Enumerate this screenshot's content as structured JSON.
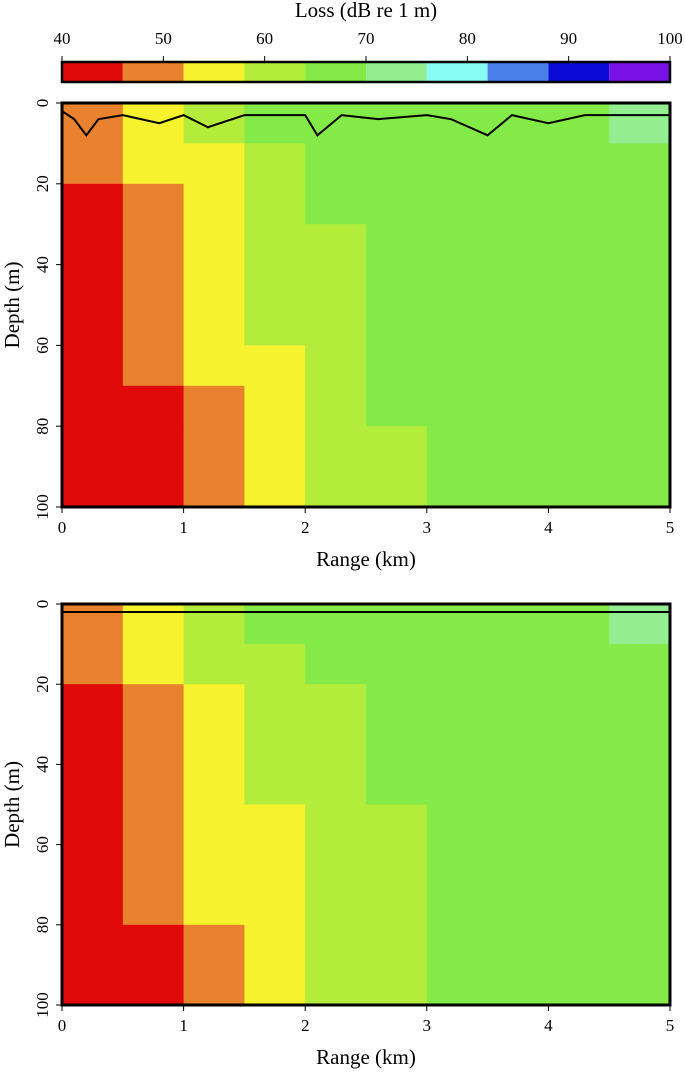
{
  "chart_data": [
    {
      "type": "colorbar",
      "title": "Loss (dB re 1 m)",
      "bins": [
        40,
        46,
        52,
        58,
        64,
        70,
        76,
        82,
        88,
        94,
        100
      ],
      "colors": [
        "#e00a0a",
        "#e8822e",
        "#f6f22e",
        "#b4ec3c",
        "#84ea48",
        "#92ee8e",
        "#86fcf4",
        "#4a80ea",
        "#0a0ad8",
        "#7a10e8"
      ],
      "xlim": [
        40,
        100
      ],
      "xticks": [
        40,
        50,
        60,
        70,
        80,
        90,
        100
      ]
    },
    {
      "type": "heatmap",
      "xlabel": "Range (km)",
      "ylabel": "Depth (m)",
      "xlim": [
        0,
        5
      ],
      "ylim": [
        100,
        0
      ],
      "xticks": [
        0,
        1,
        2,
        3,
        4,
        5
      ],
      "yticks": [
        0,
        20,
        40,
        60,
        80,
        100
      ],
      "x": [
        0.25,
        0.75,
        1.25,
        1.75,
        2.25,
        2.75,
        3.25,
        3.75,
        4.25,
        4.75
      ],
      "y": [
        5,
        15,
        25,
        35,
        45,
        55,
        65,
        75,
        85,
        95
      ],
      "z": [
        [
          50,
          55,
          60,
          64,
          66,
          67,
          68,
          68,
          69,
          70
        ],
        [
          47,
          52,
          57,
          62,
          65,
          66,
          67,
          68,
          68,
          69
        ],
        [
          45,
          50,
          56,
          60,
          64,
          66,
          67,
          67,
          68,
          68
        ],
        [
          44,
          49,
          55,
          59,
          63,
          65,
          66,
          67,
          67,
          68
        ],
        [
          43,
          48,
          54,
          58,
          62,
          65,
          66,
          66,
          67,
          67
        ],
        [
          43,
          47,
          53,
          58,
          62,
          64,
          66,
          66,
          67,
          67
        ],
        [
          42,
          46,
          52,
          57,
          61,
          64,
          65,
          66,
          66,
          67
        ],
        [
          42,
          45,
          51,
          57,
          61,
          64,
          65,
          66,
          66,
          67
        ],
        [
          42,
          45,
          50,
          56,
          60,
          63,
          65,
          65,
          66,
          66
        ],
        [
          42,
          44,
          50,
          56,
          60,
          63,
          65,
          65,
          66,
          66
        ]
      ],
      "line": {
        "color": "#000000",
        "x": [
          0,
          0.1,
          0.2,
          0.3,
          0.5,
          0.8,
          1,
          1.2,
          1.5,
          1.8,
          2,
          2.1,
          2.3,
          2.6,
          3,
          3.2,
          3.5,
          3.7,
          4,
          4.3,
          4.6,
          5
        ],
        "y": [
          2,
          4,
          8,
          4,
          3,
          5,
          3,
          6,
          3,
          3,
          3,
          8,
          3,
          4,
          3,
          4,
          8,
          3,
          5,
          3,
          3,
          3
        ]
      }
    },
    {
      "type": "heatmap",
      "xlabel": "Range (km)",
      "ylabel": "Depth (m)",
      "xlim": [
        0,
        5
      ],
      "ylim": [
        100,
        0
      ],
      "xticks": [
        0,
        1,
        2,
        3,
        4,
        5
      ],
      "yticks": [
        0,
        20,
        40,
        60,
        80,
        100
      ],
      "x": [
        0.25,
        0.75,
        1.25,
        1.75,
        2.25,
        2.75,
        3.25,
        3.75,
        4.25,
        4.75
      ],
      "y": [
        5,
        15,
        25,
        35,
        45,
        55,
        65,
        75,
        85,
        95
      ],
      "z": [
        [
          50,
          57,
          62,
          65,
          67,
          68,
          68,
          69,
          69,
          70
        ],
        [
          47,
          53,
          58,
          62,
          65,
          66,
          67,
          68,
          68,
          69
        ],
        [
          45,
          51,
          56,
          60,
          63,
          65,
          66,
          67,
          68,
          68
        ],
        [
          44,
          49,
          55,
          59,
          62,
          64,
          66,
          67,
          67,
          68
        ],
        [
          43,
          48,
          54,
          58,
          62,
          64,
          65,
          66,
          67,
          67
        ],
        [
          43,
          47,
          53,
          57,
          61,
          63,
          65,
          66,
          66,
          67
        ],
        [
          42,
          46,
          52,
          57,
          61,
          63,
          65,
          65,
          66,
          67
        ],
        [
          42,
          46,
          52,
          56,
          60,
          63,
          64,
          65,
          66,
          66
        ],
        [
          42,
          45,
          51,
          56,
          60,
          62,
          64,
          65,
          66,
          66
        ],
        [
          42,
          45,
          51,
          55,
          60,
          62,
          64,
          65,
          65,
          66
        ]
      ],
      "line": {
        "color": "#000000",
        "x": [
          0,
          5
        ],
        "y": [
          2,
          2
        ]
      }
    }
  ]
}
